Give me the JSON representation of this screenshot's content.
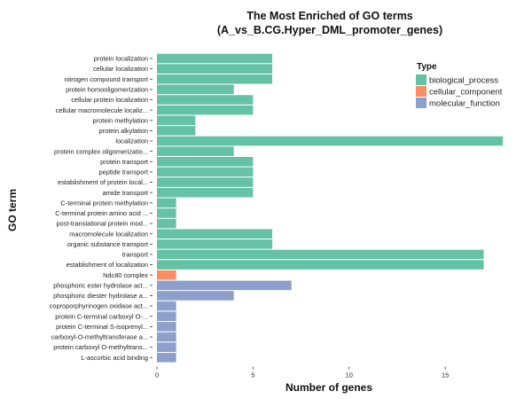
{
  "chart_data": {
    "type": "bar",
    "orientation": "horizontal",
    "title": "The Most Enriched of GO terms",
    "subtitle": "(A_vs_B.CG.Hyper_DML_promoter_genes)",
    "xlabel": "Number of genes",
    "ylabel": "GO term",
    "xlim": [
      0,
      18.5
    ],
    "xticks": [
      0,
      5,
      10,
      15
    ],
    "grid": false,
    "legend": {
      "title": "Type",
      "position": "top-right",
      "entries": [
        {
          "name": "biological_process",
          "color": "#66C2A5"
        },
        {
          "name": "cellular_component",
          "color": "#FC8D62"
        },
        {
          "name": "molecular_function",
          "color": "#8DA0CB"
        }
      ]
    },
    "categories": [
      "protein localization",
      "cellular localization",
      "nitrogen compound transport",
      "protein homooligomerization",
      "cellular protein localization",
      "cellular macromolecule localiz...",
      "protein methylation",
      "protein alkylation",
      "localization",
      "protein complex oligomerizatio...",
      "protein transport",
      "peptide transport",
      "establishment of protein local...",
      "amide transport",
      "C-terminal protein methylation",
      "C-terminal protein amino acid ...",
      "post-translational protein mod...",
      "macromolecule localization",
      "organic substance transport",
      "transport",
      "establishment of localization",
      "Ndc80 complex",
      "phosphoric ester hydrolase act...",
      "phosphoric diester hydrolase a...",
      "coproporphyrinogen oxidase act...",
      "protein C-terminal carboxyl O-...",
      "protein C-terminal S-isoprenyl...",
      "carboxyl-O-methyltransferase a...",
      "protein carboxyl O-methyltrans...",
      "L-ascorbic acid binding"
    ],
    "values": [
      6,
      6,
      6,
      4,
      5,
      5,
      2,
      2,
      18,
      4,
      5,
      5,
      5,
      5,
      1,
      1,
      1,
      6,
      6,
      17,
      17,
      1,
      7,
      4,
      1,
      1,
      1,
      1,
      1,
      1
    ],
    "types": [
      "biological_process",
      "biological_process",
      "biological_process",
      "biological_process",
      "biological_process",
      "biological_process",
      "biological_process",
      "biological_process",
      "biological_process",
      "biological_process",
      "biological_process",
      "biological_process",
      "biological_process",
      "biological_process",
      "biological_process",
      "biological_process",
      "biological_process",
      "biological_process",
      "biological_process",
      "biological_process",
      "biological_process",
      "cellular_component",
      "molecular_function",
      "molecular_function",
      "molecular_function",
      "molecular_function",
      "molecular_function",
      "molecular_function",
      "molecular_function",
      "molecular_function"
    ]
  }
}
